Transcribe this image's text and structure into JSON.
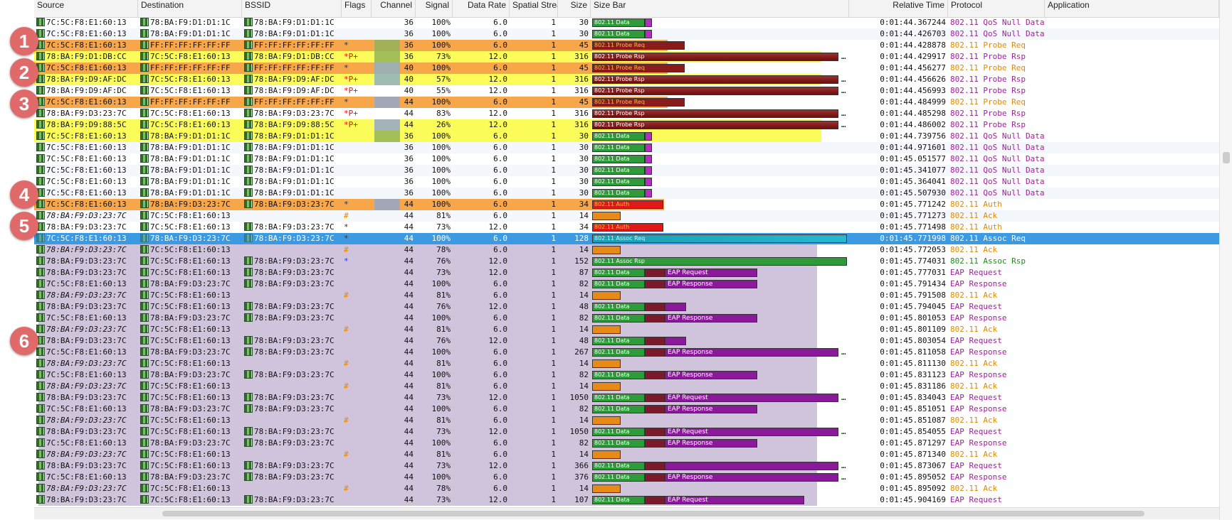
{
  "columns": [
    "Source",
    "Destination",
    "BSSID",
    "Flags",
    "Channel",
    "Signal",
    "Data Rate",
    "Spatial Streams",
    "Size",
    "Size Bar",
    "Relative Time",
    "Protocol",
    "Application"
  ],
  "badges": [
    "1",
    "2",
    "3",
    "4",
    "5",
    "6"
  ],
  "colors": {
    "orange_row": "#f7a64a",
    "yellow_row": "#fbfb5a",
    "purple_bg": "#cfc4dc",
    "selected": "#3b9ae1",
    "data_green": "#2e9a3a",
    "probe_red": "#8b1a1a",
    "eap_purple": "#8a1a9a",
    "ack_orange": "#e88a1a",
    "auth_red": "#e01818",
    "assoc_teal": "#1aa0b0",
    "proto_purple": "#a0209a",
    "proto_orange": "#e08a00",
    "proto_green": "#228b22"
  },
  "rows": [
    {
      "src": "7C:5C:F8:E1:60:13",
      "dst": "78:BA:F9:D1:D1:1C",
      "bssid": "78:BA:F9:D1:D1:1C",
      "flags": "",
      "ch": "36",
      "sig": "100%",
      "rate": "6.0",
      "ss": "1",
      "size": "30",
      "time": "0:01:44.367244",
      "proto": "802.11 QoS Null Data",
      "bar": "802.11 Data",
      "kind": "data",
      "hl": ""
    },
    {
      "src": "7C:5C:F8:E1:60:13",
      "dst": "78:BA:F9:D1:D1:1C",
      "bssid": "78:BA:F9:D1:D1:1C",
      "flags": "",
      "ch": "36",
      "sig": "100%",
      "rate": "6.0",
      "ss": "1",
      "size": "30",
      "time": "0:01:44.426703",
      "proto": "802.11 QoS Null Data",
      "bar": "802.11 Data",
      "kind": "data",
      "hl": ""
    },
    {
      "src": "7C:5C:F8:E1:60:13",
      "dst": "FF:FF:FF:FF:FF:FF",
      "bssid": "FF:FF:FF:FF:FF:FF",
      "flags": "*",
      "ch": "36",
      "sig": "100%",
      "rate": "6.0",
      "ss": "1",
      "size": "45",
      "time": "0:01:44.428878",
      "proto": "802.11 Probe Req",
      "bar": "802.11 Probe Req",
      "kind": "preq",
      "hl": "orange"
    },
    {
      "src": "78:BA:F9:D1:DB:CC",
      "dst": "7C:5C:F8:E1:60:13",
      "bssid": "78:BA:F9:D1:DB:CC",
      "flags": "*P+",
      "ch": "36",
      "sig": "73%",
      "rate": "12.0",
      "ss": "1",
      "size": "316",
      "time": "0:01:44.429917",
      "proto": "802.11 Probe Rsp",
      "bar": "802.11 Probe Rsp",
      "kind": "prsp",
      "hl": "yellow"
    },
    {
      "src": "7C:5C:F8:E1:60:13",
      "dst": "FF:FF:FF:FF:FF:FF",
      "bssid": "FF:FF:FF:FF:FF:FF",
      "flags": "*",
      "ch": "40",
      "sig": "100%",
      "rate": "6.0",
      "ss": "1",
      "size": "45",
      "time": "0:01:44.456277",
      "proto": "802.11 Probe Req",
      "bar": "802.11 Probe Req",
      "kind": "preq",
      "hl": "orange"
    },
    {
      "src": "78:BA:F9:D9:AF:DC",
      "dst": "7C:5C:F8:E1:60:13",
      "bssid": "78:BA:F9:D9:AF:DC",
      "flags": "*P+",
      "ch": "40",
      "sig": "57%",
      "rate": "12.0",
      "ss": "1",
      "size": "316",
      "time": "0:01:44.456626",
      "proto": "802.11 Probe Rsp",
      "bar": "802.11 Probe Rsp",
      "kind": "prsp",
      "hl": "yellow"
    },
    {
      "src": "78:BA:F9:D9:AF:DC",
      "dst": "7C:5C:F8:E1:60:13",
      "bssid": "78:BA:F9:D9:AF:DC",
      "flags": "*P+",
      "ch": "40",
      "sig": "55%",
      "rate": "12.0",
      "ss": "1",
      "size": "316",
      "time": "0:01:44.456993",
      "proto": "802.11 Probe Rsp",
      "bar": "802.11 Probe Rsp",
      "kind": "prsp",
      "hl": ""
    },
    {
      "src": "7C:5C:F8:E1:60:13",
      "dst": "FF:FF:FF:FF:FF:FF",
      "bssid": "FF:FF:FF:FF:FF:FF",
      "flags": "*",
      "ch": "44",
      "sig": "100%",
      "rate": "6.0",
      "ss": "1",
      "size": "45",
      "time": "0:01:44.484999",
      "proto": "802.11 Probe Req",
      "bar": "802.11 Probe Req",
      "kind": "preq",
      "hl": "orange"
    },
    {
      "src": "78:BA:F9:D3:23:7C",
      "dst": "7C:5C:F8:E1:60:13",
      "bssid": "78:BA:F9:D3:23:7C",
      "flags": "*P+",
      "ch": "44",
      "sig": "83%",
      "rate": "12.0",
      "ss": "1",
      "size": "316",
      "time": "0:01:44.485298",
      "proto": "802.11 Probe Rsp",
      "bar": "802.11 Probe Rsp",
      "kind": "prsp",
      "hl": ""
    },
    {
      "src": "78:BA:F9:D9:88:5C",
      "dst": "7C:5C:F8:E1:60:13",
      "bssid": "78:BA:F9:D9:88:5C",
      "flags": "*P+",
      "ch": "44",
      "sig": "26%",
      "rate": "12.0",
      "ss": "1",
      "size": "316",
      "time": "0:01:44.486002",
      "proto": "802.11 Probe Rsp",
      "bar": "802.11 Probe Rsp",
      "kind": "prsp",
      "hl": "yellow"
    },
    {
      "src": "7C:5C:F8:E1:60:13",
      "dst": "78:BA:F9:D1:D1:1C",
      "bssid": "78:BA:F9:D1:D1:1C",
      "flags": "",
      "ch": "36",
      "sig": "100%",
      "rate": "6.0",
      "ss": "1",
      "size": "30",
      "time": "0:01:44.739756",
      "proto": "802.11 QoS Null Data",
      "bar": "802.11 Data",
      "kind": "data",
      "hl": "yellow"
    },
    {
      "src": "7C:5C:F8:E1:60:13",
      "dst": "78:BA:F9:D1:D1:1C",
      "bssid": "78:BA:F9:D1:D1:1C",
      "flags": "",
      "ch": "36",
      "sig": "100%",
      "rate": "6.0",
      "ss": "1",
      "size": "30",
      "time": "0:01:44.971601",
      "proto": "802.11 QoS Null Data",
      "bar": "802.11 Data",
      "kind": "data",
      "hl": ""
    },
    {
      "src": "7C:5C:F8:E1:60:13",
      "dst": "78:BA:F9:D1:D1:1C",
      "bssid": "78:BA:F9:D1:D1:1C",
      "flags": "",
      "ch": "36",
      "sig": "100%",
      "rate": "6.0",
      "ss": "1",
      "size": "30",
      "time": "0:01:45.051577",
      "proto": "802.11 QoS Null Data",
      "bar": "802.11 Data",
      "kind": "data",
      "hl": ""
    },
    {
      "src": "7C:5C:F8:E1:60:13",
      "dst": "78:BA:F9:D1:D1:1C",
      "bssid": "78:BA:F9:D1:D1:1C",
      "flags": "",
      "ch": "36",
      "sig": "100%",
      "rate": "6.0",
      "ss": "1",
      "size": "30",
      "time": "0:01:45.341077",
      "proto": "802.11 QoS Null Data",
      "bar": "802.11 Data",
      "kind": "data",
      "hl": ""
    },
    {
      "src": "7C:5C:F8:E1:60:13",
      "dst": "78:BA:F9:D1:D1:1C",
      "bssid": "78:BA:F9:D1:D1:1C",
      "flags": "",
      "ch": "36",
      "sig": "100%",
      "rate": "6.0",
      "ss": "1",
      "size": "30",
      "time": "0:01:45.364041",
      "proto": "802.11 QoS Null Data",
      "bar": "802.11 Data",
      "kind": "data",
      "hl": ""
    },
    {
      "src": "7C:5C:F8:E1:60:13",
      "dst": "78:BA:F9:D1:D1:1C",
      "bssid": "78:BA:F9:D1:D1:1C",
      "flags": "",
      "ch": "36",
      "sig": "100%",
      "rate": "6.0",
      "ss": "1",
      "size": "30",
      "time": "0:01:45.507930",
      "proto": "802.11 QoS Null Data",
      "bar": "802.11 Data",
      "kind": "data",
      "hl": ""
    },
    {
      "src": "7C:5C:F8:E1:60:13",
      "dst": "78:BA:F9:D3:23:7C",
      "bssid": "78:BA:F9:D3:23:7C",
      "flags": "*",
      "ch": "44",
      "sig": "100%",
      "rate": "6.0",
      "ss": "1",
      "size": "34",
      "time": "0:01:45.771242",
      "proto": "802.11 Auth",
      "bar": "802.11 Auth",
      "kind": "auth",
      "hl": "orange"
    },
    {
      "src": "78:BA:F9:D3:23:7C",
      "dst": "7C:5C:F8:E1:60:13",
      "bssid": "",
      "flags": "#",
      "ch": "44",
      "sig": "81%",
      "rate": "6.0",
      "ss": "1",
      "size": "14",
      "time": "0:01:45.771273",
      "proto": "802.11 Ack",
      "bar": "",
      "kind": "ack",
      "hl": "",
      "it": true
    },
    {
      "src": "78:BA:F9:D3:23:7C",
      "dst": "7C:5C:F8:E1:60:13",
      "bssid": "78:BA:F9:D3:23:7C",
      "flags": "*",
      "ch": "44",
      "sig": "73%",
      "rate": "12.0",
      "ss": "1",
      "size": "34",
      "time": "0:01:45.771498",
      "proto": "802.11 Auth",
      "bar": "802.11 Auth",
      "kind": "auth",
      "hl": ""
    },
    {
      "src": "7C:5C:F8:E1:60:13",
      "dst": "78:BA:F9:D3:23:7C",
      "bssid": "78:BA:F9:D3:23:7C",
      "flags": "*",
      "ch": "44",
      "sig": "100%",
      "rate": "6.0",
      "ss": "1",
      "size": "128",
      "time": "0:01:45.771998",
      "proto": "802.11 Assoc Req",
      "bar": "802.11 Assoc Req",
      "kind": "assoc",
      "hl": "selected"
    },
    {
      "src": "78:BA:F9:D3:23:7C",
      "dst": "7C:5C:F8:E1:60:13",
      "bssid": "",
      "flags": "#",
      "ch": "44",
      "sig": "78%",
      "rate": "6.0",
      "ss": "1",
      "size": "14",
      "time": "0:01:45.772053",
      "proto": "802.11 Ack",
      "bar": "",
      "kind": "ack",
      "hl": "purple",
      "it": true
    },
    {
      "src": "78:BA:F9:D3:23:7C",
      "dst": "7C:5C:F8:E1:60:13",
      "bssid": "78:BA:F9:D3:23:7C",
      "flags": "*",
      "ch": "44",
      "sig": "76%",
      "rate": "12.0",
      "ss": "1",
      "size": "152",
      "time": "0:01:45.774031",
      "proto": "802.11 Assoc Rsp",
      "bar": "802.11 Assoc Rsp",
      "kind": "arsp",
      "hl": "purple"
    },
    {
      "src": "78:BA:F9:D3:23:7C",
      "dst": "7C:5C:F8:E1:60:13",
      "bssid": "78:BA:F9:D3:23:7C",
      "flags": "",
      "ch": "44",
      "sig": "73%",
      "rate": "12.0",
      "ss": "1",
      "size": "87",
      "time": "0:01:45.777031",
      "proto": "EAP Request",
      "bar": "802.11 Data",
      "eap": "EAP Request",
      "kind": "eap",
      "hl": "purple"
    },
    {
      "src": "7C:5C:F8:E1:60:13",
      "dst": "78:BA:F9:D3:23:7C",
      "bssid": "78:BA:F9:D3:23:7C",
      "flags": "",
      "ch": "44",
      "sig": "100%",
      "rate": "6.0",
      "ss": "1",
      "size": "82",
      "time": "0:01:45.791434",
      "proto": "EAP Response",
      "bar": "802.11 Data",
      "eap": "EAP Response",
      "kind": "eap",
      "hl": "purple"
    },
    {
      "src": "78:BA:F9:D3:23:7C",
      "dst": "7C:5C:F8:E1:60:13",
      "bssid": "",
      "flags": "#",
      "ch": "44",
      "sig": "81%",
      "rate": "6.0",
      "ss": "1",
      "size": "14",
      "time": "0:01:45.791508",
      "proto": "802.11 Ack",
      "bar": "",
      "kind": "ack",
      "hl": "purple",
      "it": true
    },
    {
      "src": "78:BA:F9:D3:23:7C",
      "dst": "7C:5C:F8:E1:60:13",
      "bssid": "78:BA:F9:D3:23:7C",
      "flags": "",
      "ch": "44",
      "sig": "76%",
      "rate": "12.0",
      "ss": "1",
      "size": "48",
      "time": "0:01:45.794045",
      "proto": "EAP Request",
      "bar": "802.11 Data",
      "eap": "",
      "kind": "eap",
      "hl": "purple"
    },
    {
      "src": "7C:5C:F8:E1:60:13",
      "dst": "78:BA:F9:D3:23:7C",
      "bssid": "78:BA:F9:D3:23:7C",
      "flags": "",
      "ch": "44",
      "sig": "100%",
      "rate": "6.0",
      "ss": "1",
      "size": "82",
      "time": "0:01:45.801053",
      "proto": "EAP Response",
      "bar": "802.11 Data",
      "eap": "EAP Response",
      "kind": "eap",
      "hl": "purple"
    },
    {
      "src": "78:BA:F9:D3:23:7C",
      "dst": "7C:5C:F8:E1:60:13",
      "bssid": "",
      "flags": "#",
      "ch": "44",
      "sig": "81%",
      "rate": "6.0",
      "ss": "1",
      "size": "14",
      "time": "0:01:45.801109",
      "proto": "802.11 Ack",
      "bar": "",
      "kind": "ack",
      "hl": "purple",
      "it": true
    },
    {
      "src": "78:BA:F9:D3:23:7C",
      "dst": "7C:5C:F8:E1:60:13",
      "bssid": "78:BA:F9:D3:23:7C",
      "flags": "",
      "ch": "44",
      "sig": "76%",
      "rate": "12.0",
      "ss": "1",
      "size": "48",
      "time": "0:01:45.803054",
      "proto": "EAP Request",
      "bar": "802.11 Data",
      "eap": "",
      "kind": "eap",
      "hl": "purple"
    },
    {
      "src": "7C:5C:F8:E1:60:13",
      "dst": "78:BA:F9:D3:23:7C",
      "bssid": "78:BA:F9:D3:23:7C",
      "flags": "",
      "ch": "44",
      "sig": "100%",
      "rate": "6.0",
      "ss": "1",
      "size": "267",
      "time": "0:01:45.811058",
      "proto": "EAP Response",
      "bar": "802.11 Data",
      "eap": "EAP Response",
      "kind": "eap",
      "hl": "purple"
    },
    {
      "src": "78:BA:F9:D3:23:7C",
      "dst": "7C:5C:F8:E1:60:13",
      "bssid": "",
      "flags": "#",
      "ch": "44",
      "sig": "81%",
      "rate": "6.0",
      "ss": "1",
      "size": "14",
      "time": "0:01:45.811130",
      "proto": "802.11 Ack",
      "bar": "",
      "kind": "ack",
      "hl": "purple",
      "it": true
    },
    {
      "src": "7C:5C:F8:E1:60:13",
      "dst": "78:BA:F9:D3:23:7C",
      "bssid": "78:BA:F9:D3:23:7C",
      "flags": "",
      "ch": "44",
      "sig": "100%",
      "rate": "6.0",
      "ss": "1",
      "size": "82",
      "time": "0:01:45.831123",
      "proto": "EAP Response",
      "bar": "802.11 Data",
      "eap": "EAP Response",
      "kind": "eap",
      "hl": "purple"
    },
    {
      "src": "78:BA:F9:D3:23:7C",
      "dst": "7C:5C:F8:E1:60:13",
      "bssid": "",
      "flags": "#",
      "ch": "44",
      "sig": "81%",
      "rate": "6.0",
      "ss": "1",
      "size": "14",
      "time": "0:01:45.831186",
      "proto": "802.11 Ack",
      "bar": "",
      "kind": "ack",
      "hl": "purple",
      "it": true
    },
    {
      "src": "78:BA:F9:D3:23:7C",
      "dst": "7C:5C:F8:E1:60:13",
      "bssid": "78:BA:F9:D3:23:7C",
      "flags": "",
      "ch": "44",
      "sig": "73%",
      "rate": "12.0",
      "ss": "1",
      "size": "1050",
      "time": "0:01:45.834043",
      "proto": "EAP Request",
      "bar": "802.11 Data",
      "eap": "EAP Request",
      "kind": "eap",
      "hl": "purple"
    },
    {
      "src": "7C:5C:F8:E1:60:13",
      "dst": "78:BA:F9:D3:23:7C",
      "bssid": "78:BA:F9:D3:23:7C",
      "flags": "",
      "ch": "44",
      "sig": "100%",
      "rate": "6.0",
      "ss": "1",
      "size": "82",
      "time": "0:01:45.851051",
      "proto": "EAP Response",
      "bar": "802.11 Data",
      "eap": "EAP Response",
      "kind": "eap",
      "hl": "purple"
    },
    {
      "src": "78:BA:F9:D3:23:7C",
      "dst": "7C:5C:F8:E1:60:13",
      "bssid": "",
      "flags": "#",
      "ch": "44",
      "sig": "81%",
      "rate": "6.0",
      "ss": "1",
      "size": "14",
      "time": "0:01:45.851087",
      "proto": "802.11 Ack",
      "bar": "",
      "kind": "ack",
      "hl": "purple",
      "it": true
    },
    {
      "src": "78:BA:F9:D3:23:7C",
      "dst": "7C:5C:F8:E1:60:13",
      "bssid": "78:BA:F9:D3:23:7C",
      "flags": "",
      "ch": "44",
      "sig": "73%",
      "rate": "12.0",
      "ss": "1",
      "size": "1050",
      "time": "0:01:45.854055",
      "proto": "EAP Request",
      "bar": "802.11 Data",
      "eap": "EAP Request",
      "kind": "eap",
      "hl": "purple"
    },
    {
      "src": "7C:5C:F8:E1:60:13",
      "dst": "78:BA:F9:D3:23:7C",
      "bssid": "78:BA:F9:D3:23:7C",
      "flags": "",
      "ch": "44",
      "sig": "100%",
      "rate": "6.0",
      "ss": "1",
      "size": "82",
      "time": "0:01:45.871297",
      "proto": "EAP Response",
      "bar": "802.11 Data",
      "eap": "EAP Response",
      "kind": "eap",
      "hl": "purple"
    },
    {
      "src": "78:BA:F9:D3:23:7C",
      "dst": "7C:5C:F8:E1:60:13",
      "bssid": "",
      "flags": "#",
      "ch": "44",
      "sig": "81%",
      "rate": "6.0",
      "ss": "1",
      "size": "14",
      "time": "0:01:45.871340",
      "proto": "802.11 Ack",
      "bar": "",
      "kind": "ack",
      "hl": "purple",
      "it": true
    },
    {
      "src": "78:BA:F9:D3:23:7C",
      "dst": "7C:5C:F8:E1:60:13",
      "bssid": "78:BA:F9:D3:23:7C",
      "flags": "",
      "ch": "44",
      "sig": "73%",
      "rate": "12.0",
      "ss": "1",
      "size": "366",
      "time": "0:01:45.873067",
      "proto": "EAP Request",
      "bar": "802.11 Data",
      "eap": "",
      "kind": "eap",
      "hl": "purple"
    },
    {
      "src": "7C:5C:F8:E1:60:13",
      "dst": "78:BA:F9:D3:23:7C",
      "bssid": "78:BA:F9:D3:23:7C",
      "flags": "",
      "ch": "44",
      "sig": "100%",
      "rate": "6.0",
      "ss": "1",
      "size": "376",
      "time": "0:01:45.895052",
      "proto": "EAP Response",
      "bar": "802.11 Data",
      "eap": "EAP Response",
      "kind": "eap",
      "hl": "purple"
    },
    {
      "src": "78:BA:F9:D3:23:7C",
      "dst": "7C:5C:F8:E1:60:13",
      "bssid": "",
      "flags": "#",
      "ch": "44",
      "sig": "78%",
      "rate": "6.0",
      "ss": "1",
      "size": "14",
      "time": "0:01:45.895092",
      "proto": "802.11 Ack",
      "bar": "",
      "kind": "ack",
      "hl": "purple",
      "it": true
    },
    {
      "src": "78:BA:F9:D3:23:7C",
      "dst": "7C:5C:F8:E1:60:13",
      "bssid": "78:BA:F9:D3:23:7C",
      "flags": "",
      "ch": "44",
      "sig": "73%",
      "rate": "12.0",
      "ss": "1",
      "size": "107",
      "time": "0:01:45.904169",
      "proto": "EAP Request",
      "bar": "802.11 Data",
      "eap": "EAP Request",
      "kind": "eap",
      "hl": "purple"
    }
  ]
}
